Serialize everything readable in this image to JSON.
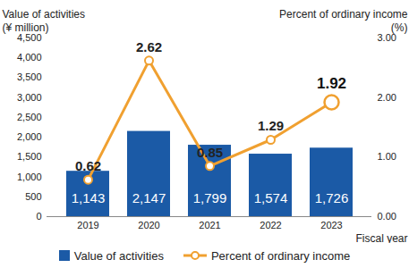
{
  "chart_data": {
    "type": "bar",
    "xlabel": "Fiscal year",
    "ylabel": "Value of activities\n(¥ million)",
    "y2label": "Percent of ordinary income\n(%)",
    "categories": [
      "2019",
      "2020",
      "2021",
      "2022",
      "2023"
    ],
    "ylim": [
      0,
      4500
    ],
    "yticks": [
      0,
      500,
      {
        "value": 1000,
        "label": "1,000"
      },
      {
        "value": 1500,
        "label": "1,500"
      },
      {
        "value": 2000,
        "label": "2,000"
      },
      {
        "value": 2500,
        "label": "2,500"
      },
      {
        "value": 3000,
        "label": "3,000"
      },
      {
        "value": 3500,
        "label": "3,500"
      },
      {
        "value": 4000,
        "label": "4,000"
      },
      {
        "value": 4500,
        "label": "4,500"
      }
    ],
    "y2lim": [
      0,
      3
    ],
    "y2ticks": [
      {
        "value": 0,
        "label": "0.00"
      },
      {
        "value": 1,
        "label": "1.00"
      },
      {
        "value": 2,
        "label": "2.00"
      },
      {
        "value": 3,
        "label": "3.00"
      }
    ],
    "grid": false,
    "legend": "bottom",
    "data_labels": true,
    "series": [
      {
        "name": "Value of activities",
        "type": "bar",
        "color": "#1b5aa6",
        "values": [
          1143,
          2147,
          1799,
          1574,
          1726
        ],
        "value_labels": [
          "1,143",
          "2,147",
          "1,799",
          "1,574",
          "1,726"
        ]
      },
      {
        "name": "Percent of ordinary income",
        "type": "line",
        "axis": "y2",
        "color": "#f0a030",
        "marker": "circle",
        "line_style": "solid",
        "values": [
          0.62,
          2.62,
          0.85,
          1.29,
          1.92
        ]
      }
    ]
  }
}
